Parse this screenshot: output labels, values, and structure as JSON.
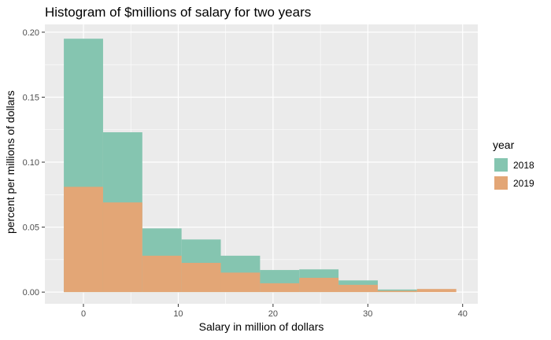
{
  "chart_data": {
    "type": "histogram",
    "title": "Histogram of $millions of salary for two years",
    "xlabel": "Salary in million of dollars",
    "ylabel": "percent per millions of dollars",
    "xlim": [
      -4.07,
      41.6
    ],
    "ylim": [
      -0.009,
      0.206
    ],
    "x_ticks": [
      0,
      10,
      20,
      30,
      40
    ],
    "x_tick_labels": [
      "0",
      "10",
      "20",
      "30",
      "40"
    ],
    "y_ticks": [
      0,
      0.05,
      0.1,
      0.15,
      0.2
    ],
    "y_tick_labels": [
      "0.00",
      "0.05",
      "0.10",
      "0.15",
      "0.20"
    ],
    "grid": true,
    "legend_title": "year",
    "legend_position": "right",
    "bin_edges": [
      -2.07,
      2.07,
      6.21,
      10.35,
      14.49,
      18.63,
      22.77,
      26.91,
      31.05,
      35.19,
      39.33
    ],
    "series": [
      {
        "name": "2018",
        "color": "#85c5b0",
        "values": [
          0.195,
          0.123,
          0.049,
          0.0405,
          0.028,
          0.017,
          0.0175,
          0.009,
          0.002,
          0
        ]
      },
      {
        "name": "2019",
        "color": "#e3a676",
        "values": [
          0.081,
          0.069,
          0.028,
          0.0225,
          0.015,
          0.0068,
          0.011,
          0.0056,
          0.001,
          0.0024
        ]
      }
    ]
  }
}
